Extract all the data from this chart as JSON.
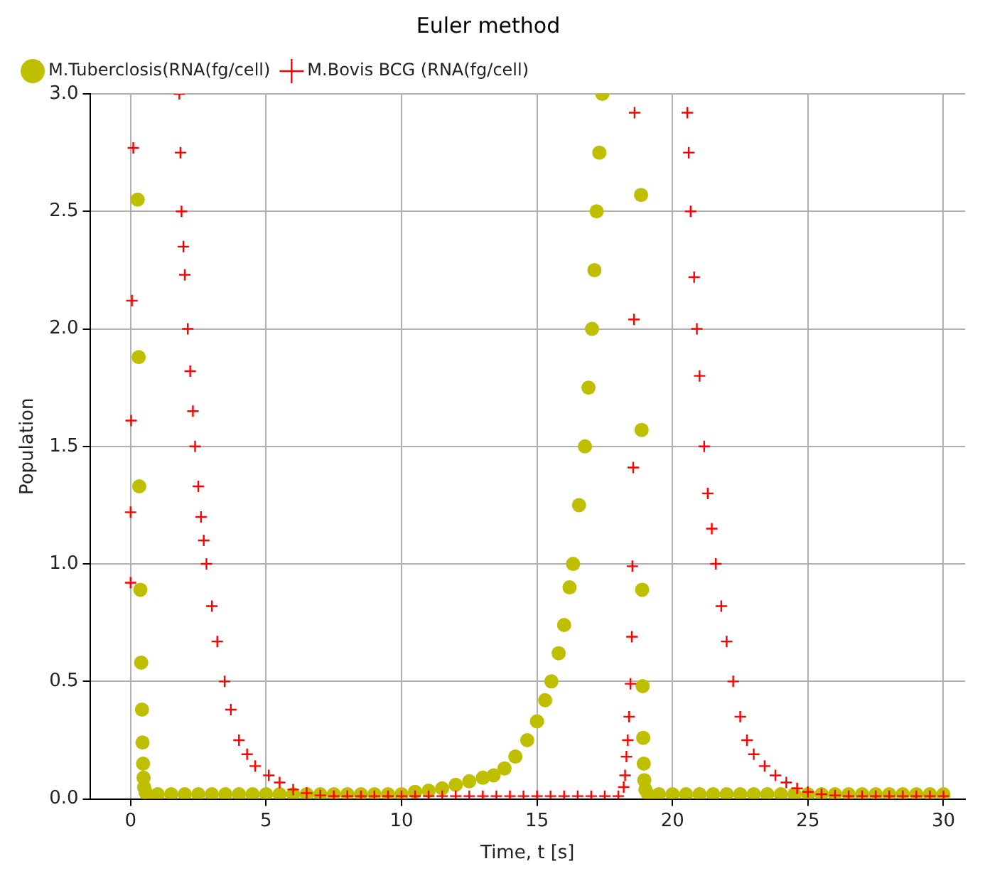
{
  "chart_data": {
    "type": "scatter",
    "title": "Euler method",
    "xlabel": "Time, t [s]",
    "ylabel": "Population",
    "xlim": [
      -1.5,
      30.8
    ],
    "ylim": [
      0,
      3
    ],
    "xticks": [
      0,
      5,
      10,
      15,
      20,
      25,
      30
    ],
    "yticks": [
      {
        "value": 0,
        "label": "0.0"
      },
      {
        "value": 0.5,
        "label": "0.5"
      },
      {
        "value": 1,
        "label": "1.0"
      },
      {
        "value": 1.5,
        "label": "1.5"
      },
      {
        "value": 2,
        "label": "2.0"
      },
      {
        "value": 2.5,
        "label": "2.5"
      },
      {
        "value": 3,
        "label": "3.0"
      }
    ],
    "grid": true,
    "legend": "top left",
    "series": [
      {
        "name": "M.Tuberclosis(RNA(fg/cell)",
        "color": "#bfbf00",
        "marker": "circle",
        "x": [
          0.26,
          0.3,
          0.32,
          0.36,
          0.39,
          0.42,
          0.44,
          0.46,
          0.48,
          0.5,
          0.55,
          0.6,
          1,
          1.5,
          2,
          2.5,
          3,
          3.5,
          4,
          4.5,
          5,
          5.5,
          6,
          6.5,
          7,
          7.5,
          8,
          8.5,
          9,
          9.5,
          10,
          10.5,
          11,
          11.5,
          12,
          12.5,
          13,
          13.4,
          13.8,
          14.2,
          14.64,
          15,
          15.3,
          15.53,
          15.8,
          16,
          16.2,
          16.33,
          16.55,
          16.77,
          16.9,
          17.03,
          17.12,
          17.2,
          17.3,
          17.41,
          18.84,
          18.86,
          18.88,
          18.9,
          18.92,
          18.94,
          18.96,
          19,
          19.1,
          19.5,
          20,
          20.5,
          21,
          21.5,
          22,
          22.5,
          23,
          23.5,
          24,
          24.5,
          25,
          25.5,
          26,
          26.5,
          27,
          27.5,
          28,
          28.5,
          29,
          29.5,
          30
        ],
        "values": [
          2.55,
          1.88,
          1.33,
          0.89,
          0.58,
          0.38,
          0.24,
          0.15,
          0.09,
          0.05,
          0.03,
          0.02,
          0.02,
          0.02,
          0.02,
          0.02,
          0.02,
          0.02,
          0.02,
          0.02,
          0.02,
          0.02,
          0.02,
          0.02,
          0.02,
          0.02,
          0.02,
          0.02,
          0.02,
          0.02,
          0.02,
          0.03,
          0.035,
          0.045,
          0.06,
          0.075,
          0.09,
          0.1,
          0.13,
          0.18,
          0.25,
          0.33,
          0.42,
          0.5,
          0.62,
          0.74,
          0.9,
          1,
          1.25,
          1.5,
          1.75,
          2,
          2.25,
          2.5,
          2.75,
          3,
          2.57,
          1.57,
          0.89,
          0.48,
          0.26,
          0.15,
          0.08,
          0.04,
          0.02,
          0.02,
          0.02,
          0.02,
          0.02,
          0.02,
          0.02,
          0.02,
          0.02,
          0.02,
          0.02,
          0.02,
          0.02,
          0.02,
          0.02,
          0.02,
          0.02,
          0.02,
          0.02,
          0.02,
          0.02,
          0.02,
          0.02
        ]
      },
      {
        "name": "M.Bovis BCG (RNA(fg/cell)",
        "color": "#ff0000",
        "marker": "cross",
        "x": [
          0,
          0,
          0.02,
          0.05,
          0.1,
          1.8,
          1.84,
          1.88,
          1.95,
          2,
          2.11,
          2.2,
          2.3,
          2.38,
          2.5,
          2.6,
          2.7,
          2.8,
          3,
          3.2,
          3.47,
          3.7,
          4,
          4.3,
          4.6,
          5.1,
          5.5,
          6,
          6.5,
          7,
          7.5,
          8,
          8.5,
          9,
          9.5,
          10,
          10.5,
          11,
          11.5,
          12,
          12.5,
          13,
          13.5,
          14,
          14.5,
          15,
          15.5,
          16,
          16.5,
          17,
          17.5,
          18,
          18.2,
          18.25,
          18.3,
          18.35,
          18.4,
          18.45,
          18.5,
          18.52,
          18.55,
          18.58,
          18.6,
          20.55,
          20.6,
          20.67,
          20.8,
          20.9,
          21,
          21.17,
          21.3,
          21.45,
          21.6,
          21.8,
          22,
          22.24,
          22.5,
          22.75,
          23,
          23.4,
          23.8,
          24.2,
          24.6,
          25,
          25.5,
          26,
          26.5,
          27,
          27.5,
          28,
          28.5,
          29,
          29.5,
          30
        ],
        "values": [
          0.92,
          1.22,
          1.61,
          2.12,
          2.77,
          3,
          2.75,
          2.5,
          2.35,
          2.23,
          2,
          1.82,
          1.65,
          1.5,
          1.33,
          1.2,
          1.1,
          1,
          0.82,
          0.67,
          0.5,
          0.38,
          0.25,
          0.19,
          0.14,
          0.1,
          0.07,
          0.04,
          0.025,
          0.015,
          0.012,
          0.012,
          0.012,
          0.012,
          0.012,
          0.012,
          0.012,
          0.012,
          0.012,
          0.012,
          0.012,
          0.012,
          0.012,
          0.012,
          0.012,
          0.012,
          0.012,
          0.012,
          0.012,
          0.012,
          0.012,
          0.012,
          0.05,
          0.1,
          0.18,
          0.25,
          0.35,
          0.49,
          0.69,
          0.99,
          1.41,
          2.04,
          2.92,
          2.92,
          2.75,
          2.5,
          2.22,
          2,
          1.8,
          1.5,
          1.3,
          1.15,
          1,
          0.82,
          0.67,
          0.5,
          0.35,
          0.25,
          0.19,
          0.14,
          0.1,
          0.07,
          0.045,
          0.03,
          0.02,
          0.015,
          0.012,
          0.012,
          0.012,
          0.012,
          0.012,
          0.012,
          0.012,
          0.012
        ]
      }
    ]
  }
}
